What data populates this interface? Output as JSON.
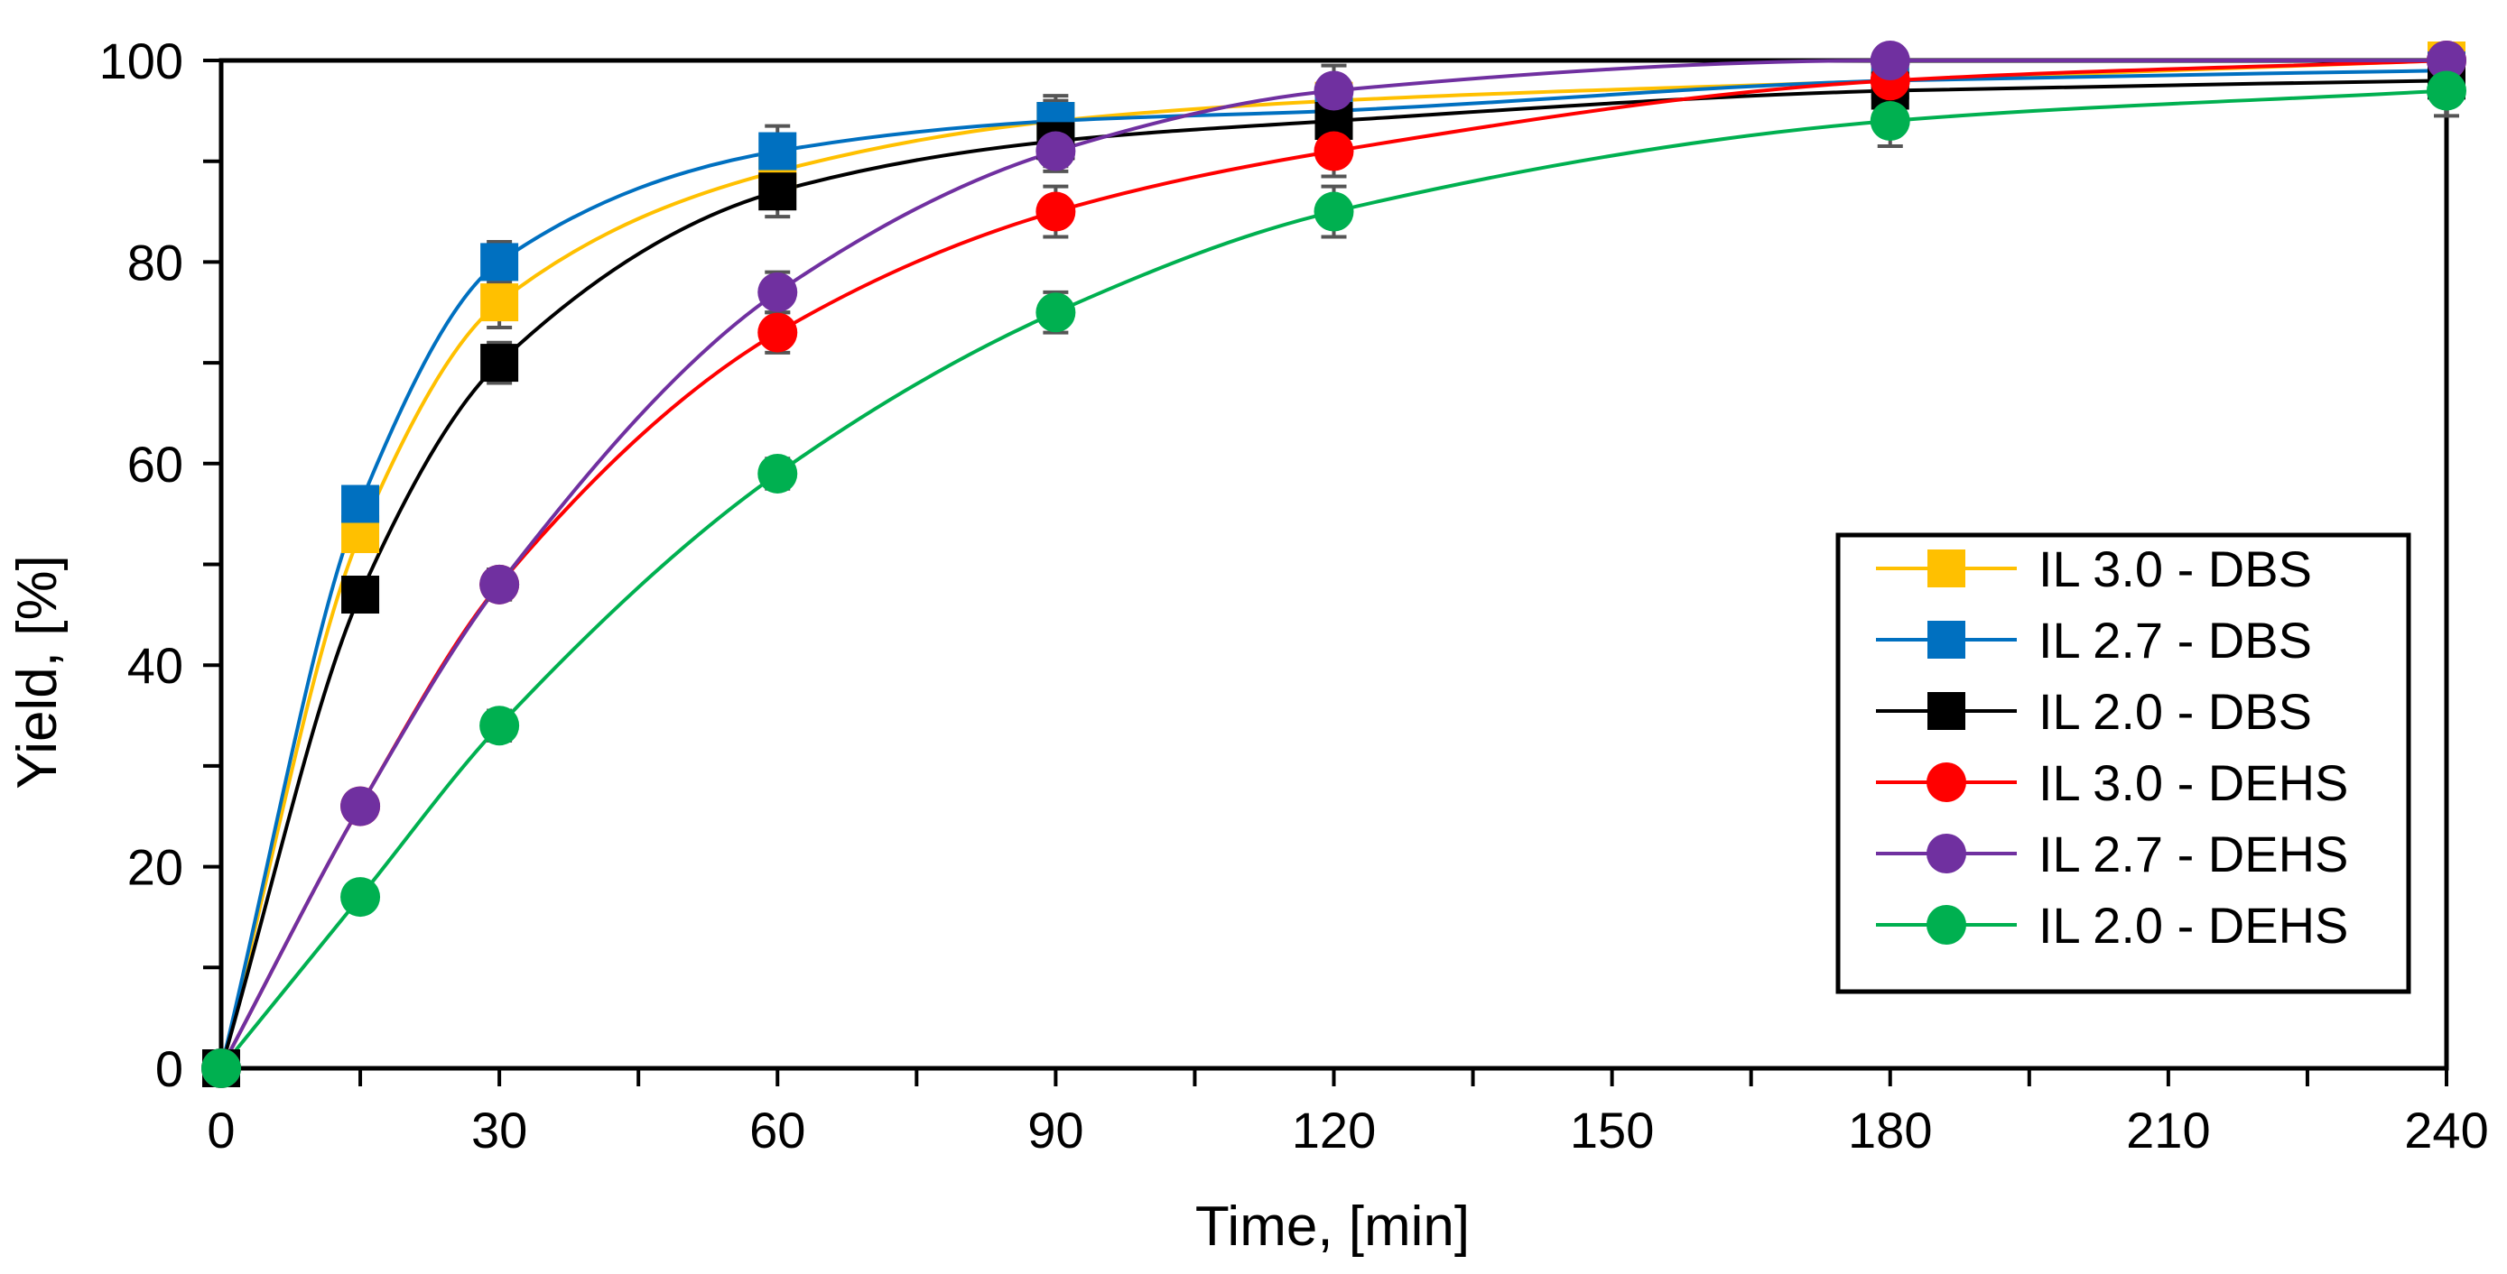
{
  "chart_data": {
    "type": "line",
    "title": "",
    "xlabel": "Time, [min]",
    "ylabel": "Yield, [%]",
    "xlim": [
      0,
      240
    ],
    "ylim": [
      0,
      100
    ],
    "x_ticks": [
      0,
      30,
      60,
      90,
      120,
      150,
      180,
      210,
      240
    ],
    "x_minor_step": 15,
    "y_ticks": [
      0,
      20,
      40,
      60,
      80,
      100
    ],
    "y_minor_step": 10,
    "grid": false,
    "legend_position": "right",
    "x": [
      0,
      15,
      30,
      60,
      90,
      120,
      180,
      240
    ],
    "series": [
      {
        "name": "IL 3.0 - DBS",
        "color": "#FFC000",
        "marker": "square",
        "values": [
          0,
          53,
          76,
          89,
          94,
          96,
          98,
          100
        ],
        "errors": [
          0,
          1.5,
          2.5,
          2,
          2,
          1.5,
          1,
          1
        ]
      },
      {
        "name": "IL 2.7 - DBS",
        "color": "#0070C0",
        "marker": "square",
        "values": [
          0,
          56,
          80,
          91,
          94,
          95,
          98,
          99
        ],
        "errors": [
          0,
          1.5,
          2,
          2.5,
          2.5,
          2,
          1,
          1
        ]
      },
      {
        "name": "IL 2.0 - DBS",
        "color": "#000000",
        "marker": "square",
        "values": [
          0,
          47,
          70,
          87,
          92,
          94,
          97,
          98
        ],
        "errors": [
          0,
          1.5,
          2,
          2.5,
          2.5,
          2.5,
          1.5,
          1.5
        ]
      },
      {
        "name": "IL 3.0 - DEHS",
        "color": "#FF0000",
        "marker": "circle",
        "values": [
          0,
          26,
          48,
          73,
          85,
          91,
          98,
          100
        ],
        "errors": [
          0,
          1,
          1.5,
          2,
          2.5,
          2.5,
          1.5,
          1
        ]
      },
      {
        "name": "IL 2.7 - DEHS",
        "color": "#7030A0",
        "marker": "circle",
        "values": [
          0,
          26,
          48,
          77,
          91,
          97,
          100,
          100
        ],
        "errors": [
          0,
          1,
          1.5,
          2,
          2,
          2.5,
          1,
          1
        ]
      },
      {
        "name": "IL 2.0 - DEHS",
        "color": "#00B050",
        "marker": "circle",
        "values": [
          0,
          17,
          34,
          59,
          75,
          85,
          94,
          97
        ],
        "errors": [
          0,
          1,
          1.5,
          1.5,
          2,
          2.5,
          2.5,
          2.5
        ]
      }
    ]
  }
}
